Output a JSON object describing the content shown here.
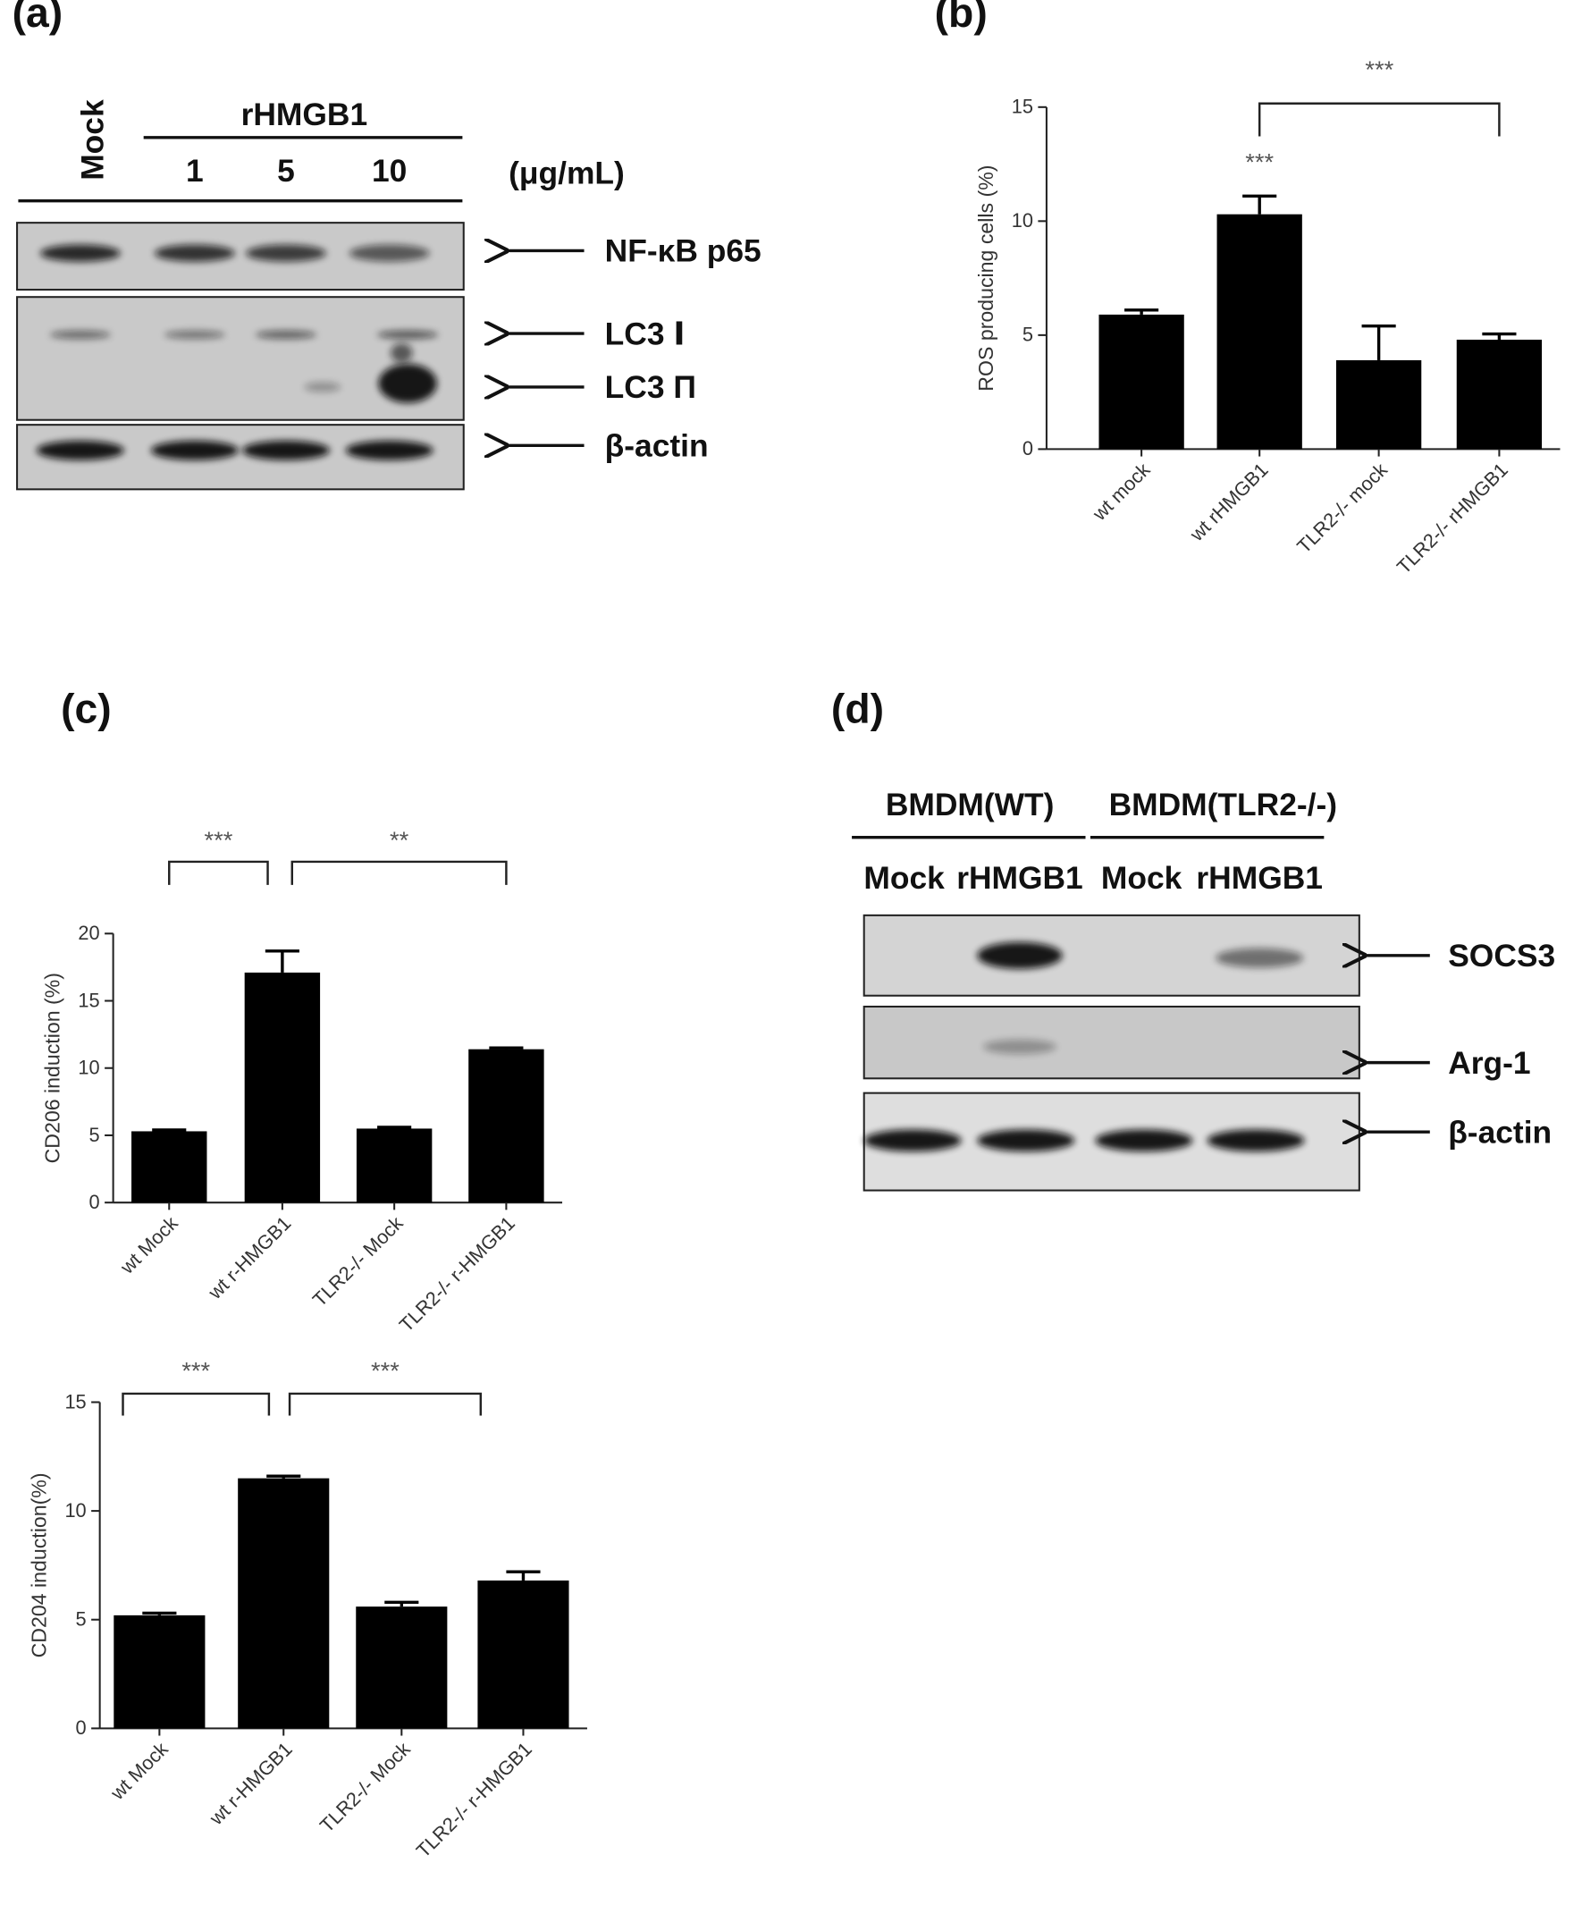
{
  "panel_labels": [
    "(a)",
    "(b)",
    "(c)",
    "(d)"
  ],
  "blot_a": {
    "mock": "Mock",
    "header": "rHMGB1",
    "doses": [
      "1",
      "5",
      "10"
    ],
    "unit": "(μg/mL)",
    "bands": [
      "NF-κB p65",
      "LC3 Ⅰ",
      "LC3 Π",
      "β-actin"
    ]
  },
  "blot_d": {
    "groups": [
      "BMDM(WT)",
      "BMDM(TLR2-/-)"
    ],
    "lanes": [
      "Mock",
      "rHMGB1",
      "Mock",
      "rHMGB1"
    ],
    "bands": [
      "SOCS3",
      "Arg-1",
      "β-actin"
    ]
  },
  "chart_data": [
    {
      "type": "bar",
      "y_label": "ROS producing cells (%)",
      "categories": [
        "wt mock",
        "wt rHMGB1",
        "TLR2-/- mock",
        "TLR2-/- rHMGB1"
      ],
      "values": [
        5.9,
        10.3,
        3.9,
        4.8
      ],
      "errors": [
        0.2,
        0.8,
        1.5,
        0.25
      ],
      "color": "#000000",
      "ylim": [
        0,
        15
      ],
      "yticks": [
        0,
        5,
        10,
        15
      ],
      "annotations": [
        "***",
        "***"
      ]
    },
    {
      "type": "bar",
      "y_label": "CD206 induction (%)",
      "categories": [
        "wt Mock",
        "wt r-HMGB1",
        "TLR2-/- Mock",
        "TLR2-/- r-HMGB1"
      ],
      "values": [
        5.3,
        17.1,
        5.5,
        11.4
      ],
      "errors": [
        0.1,
        1.6,
        0.1,
        0.1
      ],
      "color": "#000000",
      "ylim": [
        0,
        20
      ],
      "yticks": [
        0,
        5,
        10,
        15,
        20
      ],
      "annotations": [
        "***",
        "**"
      ]
    },
    {
      "type": "bar",
      "y_label": "CD204 induction(%)",
      "categories": [
        "wt Mock",
        "wt r-HMGB1",
        "TLR2-/- Mock",
        "TLR2-/- r-HMGB1"
      ],
      "values": [
        5.2,
        11.5,
        5.6,
        6.8
      ],
      "errors": [
        0.1,
        0.1,
        0.2,
        0.4
      ],
      "color": "#000000",
      "ylim": [
        0,
        15
      ],
      "yticks": [
        0,
        5,
        10,
        15
      ],
      "annotations": [
        "***",
        "***"
      ]
    }
  ]
}
